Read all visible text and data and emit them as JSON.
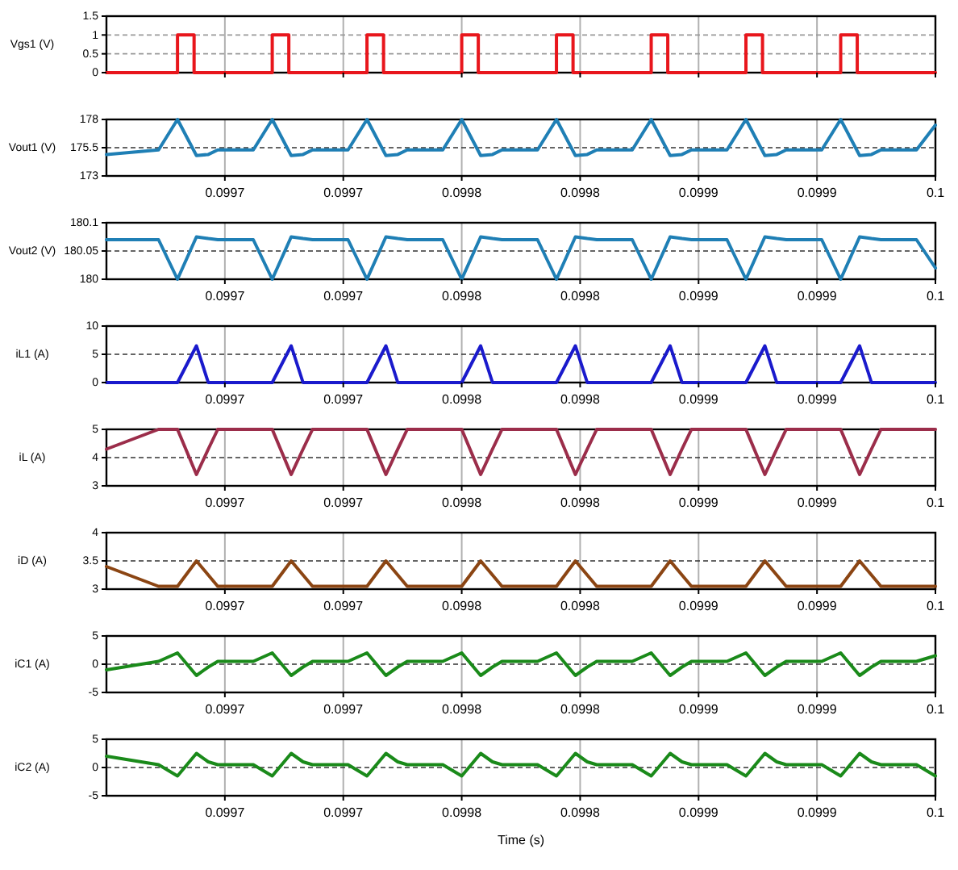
{
  "chart_data": [
    {
      "type": "step",
      "ylabel": "Vgs1 (V)",
      "color": "#e8161c",
      "xlim": [
        0.09965,
        0.1
      ],
      "ylim": [
        0,
        1.5
      ],
      "yticks": [
        0,
        0.5,
        1,
        1.5
      ],
      "grid": true,
      "tick_labels": "y",
      "xticks": [
        {
          "value": 0.0997,
          "label": null
        },
        {
          "value": 0.09975,
          "label": null
        },
        {
          "value": 0.0998,
          "label": null
        },
        {
          "value": 0.09985,
          "label": null
        },
        {
          "value": 0.0999,
          "label": null
        },
        {
          "value": 0.09995,
          "label": null
        },
        {
          "value": 0.1,
          "label": null
        }
      ],
      "x": [
        0.09965,
        0.09968,
        0.099687,
        0.09972,
        0.099727,
        0.09976,
        0.099767,
        0.0998,
        0.099807,
        0.09984,
        0.099847,
        0.09988,
        0.099887,
        0.09992,
        0.099927,
        0.09996,
        0.099967,
        0.1
      ],
      "values": [
        0,
        1,
        0,
        1,
        0,
        1,
        0,
        1,
        0,
        1,
        0,
        1,
        0,
        1,
        0,
        1,
        0,
        0
      ]
    },
    {
      "type": "line",
      "ylabel": "Vout1 (V)",
      "color": "#1f7fb5",
      "xlim": [
        0.09965,
        0.1
      ],
      "ylim": [
        173,
        178
      ],
      "yticks": [
        173,
        175.5,
        178
      ],
      "grid": "x",
      "ref_lines": [
        {
          "axis": "y",
          "value": 175.5,
          "line_style": "dashed",
          "color": "#333333"
        }
      ],
      "xticks": [
        {
          "value": 0.0997,
          "label": "0.0997"
        },
        {
          "value": 0.09975,
          "label": "0.0997"
        },
        {
          "value": 0.0998,
          "label": "0.0998"
        },
        {
          "value": 0.09985,
          "label": "0.0998"
        },
        {
          "value": 0.0999,
          "label": "0.0999"
        },
        {
          "value": 0.09995,
          "label": "0.0999"
        },
        {
          "value": 0.1,
          "label": "0.1"
        }
      ],
      "x": [
        0.09965,
        0.099672,
        0.09968,
        0.099688,
        0.099693,
        0.099697,
        0.099712,
        0.09972,
        0.099728,
        0.099733,
        0.099737,
        0.099752,
        0.09976,
        0.099768,
        0.099773,
        0.099777,
        0.099792,
        0.0998,
        0.099808,
        0.099813,
        0.099817,
        0.099832,
        0.09984,
        0.099848,
        0.099853,
        0.099857,
        0.099872,
        0.09988,
        0.099888,
        0.099893,
        0.099897,
        0.099912,
        0.09992,
        0.099928,
        0.099933,
        0.099937,
        0.099952,
        0.09996,
        0.099968,
        0.099973,
        0.099977,
        0.099992,
        0.1
      ],
      "values": [
        174.9,
        175.3,
        178,
        174.8,
        174.9,
        175.3,
        175.3,
        178,
        174.8,
        174.9,
        175.3,
        175.3,
        178,
        174.8,
        174.9,
        175.3,
        175.3,
        178,
        174.8,
        174.9,
        175.3,
        175.3,
        178,
        174.8,
        174.9,
        175.3,
        175.3,
        178,
        174.8,
        174.9,
        175.3,
        175.3,
        178,
        174.8,
        174.9,
        175.3,
        175.3,
        178,
        174.8,
        174.9,
        175.3,
        175.3,
        177.5
      ]
    },
    {
      "type": "line",
      "ylabel": "Vout2 (V)",
      "color": "#1f7fb5",
      "xlim": [
        0.09965,
        0.1
      ],
      "ylim": [
        180,
        180.1
      ],
      "yticks": [
        180,
        180.05,
        180.1
      ],
      "grid": "x",
      "ref_lines": [
        {
          "axis": "y",
          "value": 180.05,
          "line_style": "dashed",
          "color": "#333333"
        }
      ],
      "xticks": [
        {
          "value": 0.0997,
          "label": "0.0997"
        },
        {
          "value": 0.09975,
          "label": "0.0997"
        },
        {
          "value": 0.0998,
          "label": "0.0998"
        },
        {
          "value": 0.09985,
          "label": "0.0998"
        },
        {
          "value": 0.0999,
          "label": "0.0999"
        },
        {
          "value": 0.09995,
          "label": "0.0999"
        },
        {
          "value": 0.1,
          "label": "0.1"
        }
      ],
      "x": [
        0.09965,
        0.099672,
        0.09968,
        0.099688,
        0.099693,
        0.099697,
        0.099712,
        0.09972,
        0.099728,
        0.099733,
        0.099737,
        0.099752,
        0.09976,
        0.099768,
        0.099773,
        0.099777,
        0.099792,
        0.0998,
        0.099808,
        0.099813,
        0.099817,
        0.099832,
        0.09984,
        0.099848,
        0.099853,
        0.099857,
        0.099872,
        0.09988,
        0.099888,
        0.099893,
        0.099897,
        0.099912,
        0.09992,
        0.099928,
        0.099933,
        0.099937,
        0.099952,
        0.09996,
        0.099968,
        0.099973,
        0.099977,
        0.099992,
        0.1
      ],
      "values": [
        180.07,
        180.07,
        180,
        180.075,
        180.072,
        180.07,
        180.07,
        180,
        180.075,
        180.072,
        180.07,
        180.07,
        180,
        180.075,
        180.072,
        180.07,
        180.07,
        180,
        180.075,
        180.072,
        180.07,
        180.07,
        180,
        180.075,
        180.072,
        180.07,
        180.07,
        180,
        180.075,
        180.072,
        180.07,
        180.07,
        180,
        180.075,
        180.072,
        180.07,
        180.07,
        180,
        180.075,
        180.072,
        180.07,
        180.07,
        180.02
      ]
    },
    {
      "type": "line",
      "ylabel": "iL1 (A)",
      "color": "#1a1acc",
      "xlim": [
        0.09965,
        0.1
      ],
      "ylim": [
        0,
        10
      ],
      "yticks": [
        0,
        5,
        10
      ],
      "grid": "x",
      "ref_lines": [
        {
          "axis": "y",
          "value": 5,
          "line_style": "dashed",
          "color": "#333333"
        }
      ],
      "xticks": [
        {
          "value": 0.0997,
          "label": "0.0997"
        },
        {
          "value": 0.09975,
          "label": "0.0997"
        },
        {
          "value": 0.0998,
          "label": "0.0998"
        },
        {
          "value": 0.09985,
          "label": "0.0998"
        },
        {
          "value": 0.0999,
          "label": "0.0999"
        },
        {
          "value": 0.09995,
          "label": "0.0999"
        },
        {
          "value": 0.1,
          "label": "0.1"
        }
      ],
      "x": [
        0.09965,
        0.099672,
        0.09968,
        0.099688,
        0.099693,
        0.099697,
        0.099712,
        0.09972,
        0.099728,
        0.099733,
        0.099737,
        0.099752,
        0.09976,
        0.099768,
        0.099773,
        0.099777,
        0.099792,
        0.0998,
        0.099808,
        0.099813,
        0.099817,
        0.099832,
        0.09984,
        0.099848,
        0.099853,
        0.099857,
        0.099872,
        0.09988,
        0.099888,
        0.099893,
        0.099897,
        0.099912,
        0.09992,
        0.099928,
        0.099933,
        0.099937,
        0.099952,
        0.09996,
        0.099968,
        0.099973,
        0.099977,
        0.099992,
        0.1
      ],
      "values": [
        0,
        0,
        0,
        6.5,
        0,
        0,
        0,
        0,
        6.5,
        0,
        0,
        0,
        0,
        6.5,
        0,
        0,
        0,
        0,
        6.5,
        0,
        0,
        0,
        0,
        6.5,
        0,
        0,
        0,
        0,
        6.5,
        0,
        0,
        0,
        0,
        6.5,
        0,
        0,
        0,
        0,
        6.5,
        0,
        0,
        0,
        0
      ]
    },
    {
      "type": "line",
      "ylabel": "iL (A)",
      "color": "#9b2d4a",
      "xlim": [
        0.09965,
        0.1
      ],
      "ylim": [
        3,
        5
      ],
      "yticks": [
        3,
        4,
        5
      ],
      "grid": "x",
      "ref_lines": [
        {
          "axis": "y",
          "value": 4,
          "line_style": "dashed",
          "color": "#333333"
        }
      ],
      "xticks": [
        {
          "value": 0.0997,
          "label": "0.0997"
        },
        {
          "value": 0.09975,
          "label": "0.0997"
        },
        {
          "value": 0.0998,
          "label": "0.0998"
        },
        {
          "value": 0.09985,
          "label": "0.0998"
        },
        {
          "value": 0.0999,
          "label": "0.0999"
        },
        {
          "value": 0.09995,
          "label": "0.0999"
        },
        {
          "value": 0.1,
          "label": "0.1"
        }
      ],
      "x": [
        0.09965,
        0.099672,
        0.09968,
        0.099688,
        0.099693,
        0.099697,
        0.099712,
        0.09972,
        0.099728,
        0.099733,
        0.099737,
        0.099752,
        0.09976,
        0.099768,
        0.099773,
        0.099777,
        0.099792,
        0.0998,
        0.099808,
        0.099813,
        0.099817,
        0.099832,
        0.09984,
        0.099848,
        0.099853,
        0.099857,
        0.099872,
        0.09988,
        0.099888,
        0.099893,
        0.099897,
        0.099912,
        0.09992,
        0.099928,
        0.099933,
        0.099937,
        0.099952,
        0.09996,
        0.099968,
        0.099973,
        0.099977,
        0.099992,
        0.1
      ],
      "values": [
        4.3,
        5,
        5,
        3.4,
        4.3,
        5,
        5,
        5,
        3.4,
        4.3,
        5,
        5,
        5,
        3.4,
        4.3,
        5,
        5,
        5,
        3.4,
        4.3,
        5,
        5,
        5,
        3.4,
        4.3,
        5,
        5,
        5,
        3.4,
        4.3,
        5,
        5,
        5,
        3.4,
        4.3,
        5,
        5,
        5,
        3.4,
        4.3,
        5,
        5,
        5
      ]
    },
    {
      "type": "line",
      "ylabel": "iD (A)",
      "color": "#8b4513",
      "xlim": [
        0.09965,
        0.1
      ],
      "ylim": [
        3,
        4
      ],
      "yticks": [
        3,
        3.5,
        4
      ],
      "grid": "x",
      "ref_lines": [
        {
          "axis": "y",
          "value": 3.5,
          "line_style": "dashed",
          "color": "#333333"
        }
      ],
      "xticks": [
        {
          "value": 0.0997,
          "label": "0.0997"
        },
        {
          "value": 0.09975,
          "label": "0.0997"
        },
        {
          "value": 0.0998,
          "label": "0.0998"
        },
        {
          "value": 0.09985,
          "label": "0.0998"
        },
        {
          "value": 0.0999,
          "label": "0.0999"
        },
        {
          "value": 0.09995,
          "label": "0.0999"
        },
        {
          "value": 0.1,
          "label": "0.1"
        }
      ],
      "x": [
        0.09965,
        0.099672,
        0.09968,
        0.099688,
        0.099693,
        0.099697,
        0.099712,
        0.09972,
        0.099728,
        0.099733,
        0.099737,
        0.099752,
        0.09976,
        0.099768,
        0.099773,
        0.099777,
        0.099792,
        0.0998,
        0.099808,
        0.099813,
        0.099817,
        0.099832,
        0.09984,
        0.099848,
        0.099853,
        0.099857,
        0.099872,
        0.09988,
        0.099888,
        0.099893,
        0.099897,
        0.099912,
        0.09992,
        0.099928,
        0.099933,
        0.099937,
        0.099952,
        0.09996,
        0.099968,
        0.099973,
        0.099977,
        0.099992,
        0.1
      ],
      "values": [
        3.4,
        3.05,
        3.05,
        3.5,
        3.25,
        3.05,
        3.05,
        3.05,
        3.5,
        3.25,
        3.05,
        3.05,
        3.05,
        3.5,
        3.25,
        3.05,
        3.05,
        3.05,
        3.5,
        3.25,
        3.05,
        3.05,
        3.05,
        3.5,
        3.25,
        3.05,
        3.05,
        3.05,
        3.5,
        3.25,
        3.05,
        3.05,
        3.05,
        3.5,
        3.25,
        3.05,
        3.05,
        3.05,
        3.5,
        3.25,
        3.05,
        3.05,
        3.05
      ]
    },
    {
      "type": "line",
      "ylabel": "iC1 (A)",
      "color": "#1a8a1a",
      "xlim": [
        0.09965,
        0.1
      ],
      "ylim": [
        -5,
        5
      ],
      "yticks": [
        -5,
        0,
        5
      ],
      "grid": "x",
      "ref_lines": [
        {
          "axis": "y",
          "value": 0,
          "line_style": "dashed",
          "color": "#333333"
        }
      ],
      "xticks": [
        {
          "value": 0.0997,
          "label": "0.0997"
        },
        {
          "value": 0.09975,
          "label": "0.0997"
        },
        {
          "value": 0.0998,
          "label": "0.0998"
        },
        {
          "value": 0.09985,
          "label": "0.0998"
        },
        {
          "value": 0.0999,
          "label": "0.0999"
        },
        {
          "value": 0.09995,
          "label": "0.0999"
        },
        {
          "value": 0.1,
          "label": "0.1"
        }
      ],
      "x": [
        0.09965,
        0.099672,
        0.09968,
        0.099688,
        0.099693,
        0.099697,
        0.099712,
        0.09972,
        0.099728,
        0.099733,
        0.099737,
        0.099752,
        0.09976,
        0.099768,
        0.099773,
        0.099777,
        0.099792,
        0.0998,
        0.099808,
        0.099813,
        0.099817,
        0.099832,
        0.09984,
        0.099848,
        0.099853,
        0.099857,
        0.099872,
        0.09988,
        0.099888,
        0.099893,
        0.099897,
        0.099912,
        0.09992,
        0.099928,
        0.099933,
        0.099937,
        0.099952,
        0.09996,
        0.099968,
        0.099973,
        0.099977,
        0.099992,
        0.1
      ],
      "values": [
        -1,
        0.5,
        2,
        -2,
        -0.5,
        0.5,
        0.5,
        2,
        -2,
        -0.5,
        0.5,
        0.5,
        2,
        -2,
        -0.5,
        0.5,
        0.5,
        2,
        -2,
        -0.5,
        0.5,
        0.5,
        2,
        -2,
        -0.5,
        0.5,
        0.5,
        2,
        -2,
        -0.5,
        0.5,
        0.5,
        2,
        -2,
        -0.5,
        0.5,
        0.5,
        2,
        -2,
        -0.5,
        0.5,
        0.5,
        1.5
      ]
    },
    {
      "type": "line",
      "ylabel": "iC2 (A)",
      "xlabel": "Time (s)",
      "color": "#1a8a1a",
      "xlim": [
        0.09965,
        0.1
      ],
      "ylim": [
        -5,
        5
      ],
      "yticks": [
        -5,
        0,
        5
      ],
      "grid": "x",
      "ref_lines": [
        {
          "axis": "y",
          "value": 0,
          "line_style": "dashed",
          "color": "#333333"
        }
      ],
      "xticks": [
        {
          "value": 0.0997,
          "label": "0.0997"
        },
        {
          "value": 0.09975,
          "label": "0.0997"
        },
        {
          "value": 0.0998,
          "label": "0.0998"
        },
        {
          "value": 0.09985,
          "label": "0.0998"
        },
        {
          "value": 0.0999,
          "label": "0.0999"
        },
        {
          "value": 0.09995,
          "label": "0.0999"
        },
        {
          "value": 0.1,
          "label": "0.1"
        }
      ],
      "x": [
        0.09965,
        0.099672,
        0.09968,
        0.099688,
        0.099693,
        0.099697,
        0.099712,
        0.09972,
        0.099728,
        0.099733,
        0.099737,
        0.099752,
        0.09976,
        0.099768,
        0.099773,
        0.099777,
        0.099792,
        0.0998,
        0.099808,
        0.099813,
        0.099817,
        0.099832,
        0.09984,
        0.099848,
        0.099853,
        0.099857,
        0.099872,
        0.09988,
        0.099888,
        0.099893,
        0.099897,
        0.099912,
        0.09992,
        0.099928,
        0.099933,
        0.099937,
        0.099952,
        0.09996,
        0.099968,
        0.099973,
        0.099977,
        0.099992,
        0.1
      ],
      "values": [
        2,
        0.5,
        -1.5,
        2.5,
        1,
        0.5,
        0.5,
        -1.5,
        2.5,
        1,
        0.5,
        0.5,
        -1.5,
        2.5,
        1,
        0.5,
        0.5,
        -1.5,
        2.5,
        1,
        0.5,
        0.5,
        -1.5,
        2.5,
        1,
        0.5,
        0.5,
        -1.5,
        2.5,
        1,
        0.5,
        0.5,
        -1.5,
        2.5,
        1,
        0.5,
        0.5,
        -1.5,
        2.5,
        1,
        0.5,
        0.5,
        -1.5
      ]
    }
  ]
}
